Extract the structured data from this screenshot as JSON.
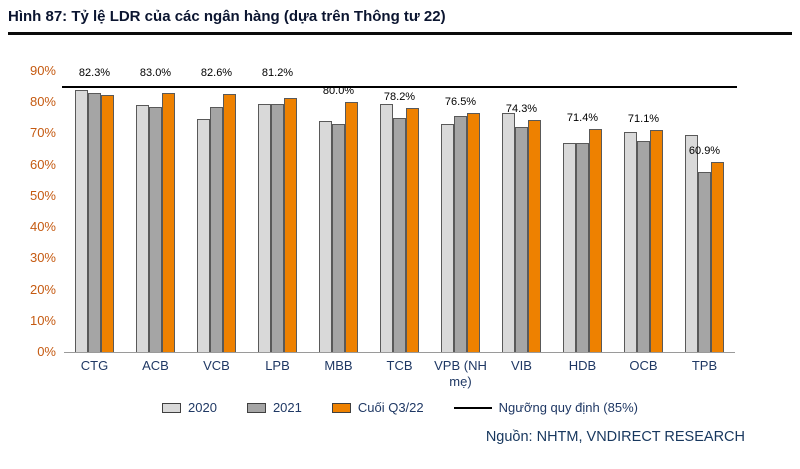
{
  "header": {
    "title": "Hình 87: Tỷ lệ LDR của các ngân hàng (dựa trên Thông tư 22)"
  },
  "chart_data": {
    "type": "bar",
    "title": "Tỷ lệ LDR của các ngân hàng (dựa trên Thông tư 22)",
    "categories": [
      "CTG",
      "ACB",
      "VCB",
      "LPB",
      "MBB",
      "TCB",
      "VPB (NH mẹ)",
      "VIB",
      "HDB",
      "OCB",
      "TPB"
    ],
    "series": [
      {
        "name": "2020",
        "color_key": "series2020",
        "values": [
          84.0,
          79.0,
          74.5,
          79.5,
          74.0,
          79.5,
          73.0,
          76.5,
          67.0,
          70.5,
          69.5
        ]
      },
      {
        "name": "2021",
        "color_key": "series2021",
        "values": [
          83.0,
          78.5,
          78.5,
          79.5,
          73.0,
          75.0,
          75.5,
          72.0,
          67.0,
          67.5,
          57.5
        ]
      },
      {
        "name": "Cuối Q3/22",
        "color_key": "seriesQ3",
        "values": [
          82.3,
          83.0,
          82.6,
          81.2,
          80.0,
          78.2,
          76.5,
          74.3,
          71.4,
          71.1,
          60.9
        ]
      }
    ],
    "data_labels": [
      "82.3%",
      "83.0%",
      "82.6%",
      "81.2%",
      "80.0%",
      "78.2%",
      "76.5%",
      "74.3%",
      "71.4%",
      "71.1%",
      "60.9%"
    ],
    "threshold": {
      "label": "Ngưỡng quy định (85%)",
      "value": 85
    },
    "y_axis": {
      "min": 0,
      "max": 90,
      "step": 10,
      "tick_labels": [
        "0%",
        "10%",
        "20%",
        "30%",
        "40%",
        "50%",
        "60%",
        "70%",
        "80%",
        "90%"
      ]
    },
    "legend_position": "bottom",
    "grid": false
  },
  "footer": {
    "source": "Nguồn: NHTM, VNDIRECT RESEARCH"
  },
  "colors": {
    "series2020": "#D9D9D9",
    "series2021": "#A5A5A5",
    "seriesQ3": "#EE8100",
    "threshold": "#000000",
    "title": "#0B1530",
    "axis_tick": "#C55A11",
    "category_label": "#1F3864",
    "source_text": "#17375E",
    "bar_border": "#595959"
  }
}
